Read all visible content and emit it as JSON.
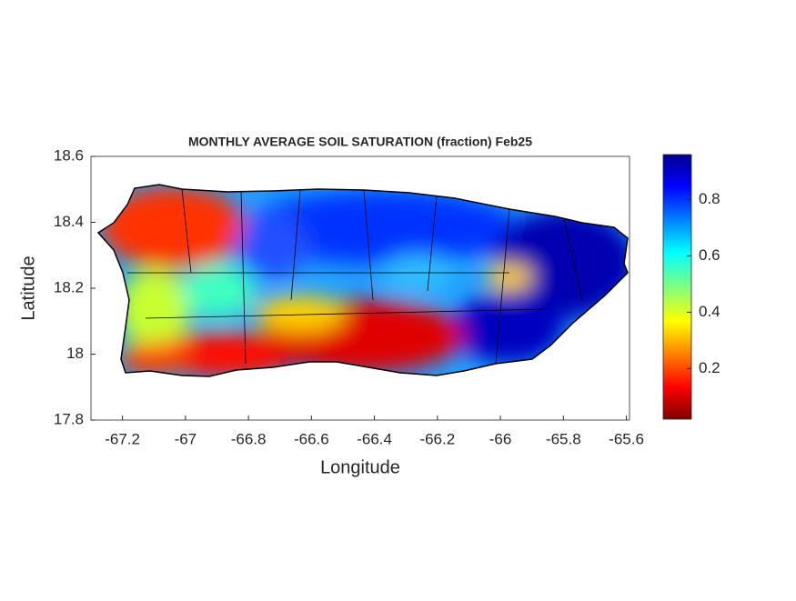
{
  "chart_data": {
    "type": "heatmap-map",
    "title": "MONTHLY AVERAGE SOIL SATURATION (fraction) Feb25",
    "x_label": "Longitude",
    "y_label": "Latitude",
    "xlim": [
      -67.3,
      -65.59
    ],
    "xticks": [
      -67.2,
      -67,
      -66.8,
      -66.6,
      -66.4,
      -66.2,
      -66,
      -65.8,
      -65.6
    ],
    "ylim": [
      17.8,
      18.6
    ],
    "yticks": [
      17.8,
      18,
      18.2,
      18.4,
      18.6
    ],
    "colorbar": {
      "colormap": "jet",
      "clim": [
        0.02,
        0.96
      ],
      "ticks": [
        0.2,
        0.4,
        0.6,
        0.8
      ]
    }
  }
}
